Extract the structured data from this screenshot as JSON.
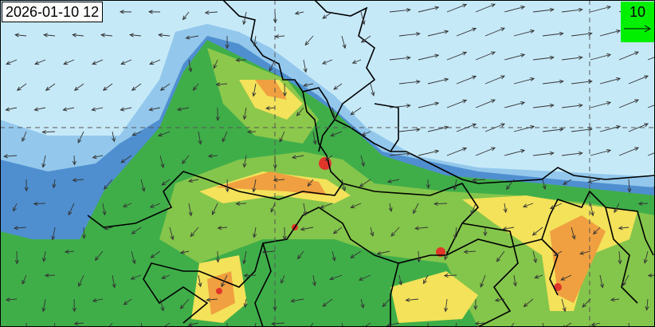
{
  "timestamp": "2026-01-10 12",
  "wind_legend": {
    "value": "10",
    "icon": "reference-arrow-icon",
    "background": "#00f000"
  },
  "colors": {
    "background_low": "#c6e9f8",
    "light_blue": "#93c8ec",
    "blue": "#4f8fd0",
    "green": "#3fae49",
    "light_green": "#8cc84b",
    "yellow": "#f3e25a",
    "orange": "#f0a040",
    "red": "#e0362a",
    "border": "#000000",
    "arrow": "#333333"
  },
  "gridlines": "dashed"
}
